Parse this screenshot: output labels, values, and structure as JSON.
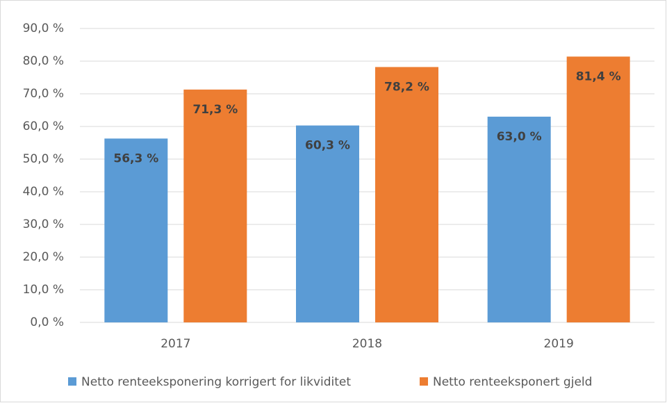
{
  "chart_data": {
    "type": "bar",
    "categories": [
      "2017",
      "2018",
      "2019"
    ],
    "series": [
      {
        "name": "Netto renteeksponering korrigert for likviditet",
        "color": "#5b9bd5",
        "values": [
          56.3,
          60.3,
          63.0
        ],
        "value_labels": [
          "56,3 %",
          "60,3 %",
          "63,0 %"
        ]
      },
      {
        "name": "Netto renteeksponert gjeld",
        "color": "#ed7d31",
        "values": [
          71.3,
          78.2,
          81.4
        ],
        "value_labels": [
          "71,3 %",
          "78,2 %",
          "81,4 %"
        ]
      }
    ],
    "ylim": [
      0,
      90
    ],
    "yticks": [
      {
        "value": 0,
        "label": "0,0 %"
      },
      {
        "value": 10,
        "label": "10,0 %"
      },
      {
        "value": 20,
        "label": "20,0 %"
      },
      {
        "value": 30,
        "label": "30,0 %"
      },
      {
        "value": 40,
        "label": "40,0 %"
      },
      {
        "value": 50,
        "label": "50,0 %"
      },
      {
        "value": 60,
        "label": "60,0 %"
      },
      {
        "value": 70,
        "label": "70,0 %"
      },
      {
        "value": 80,
        "label": "80,0 %"
      },
      {
        "value": 90,
        "label": "90,0 %"
      }
    ],
    "grid": true,
    "legend": "bottom"
  }
}
